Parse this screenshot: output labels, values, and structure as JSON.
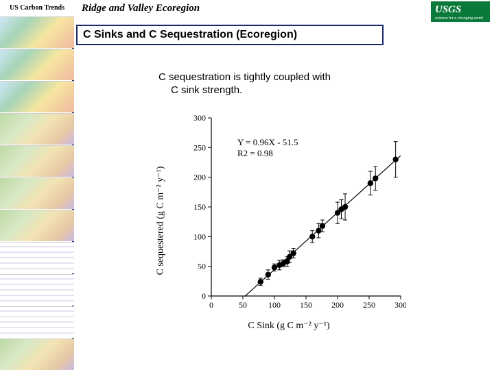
{
  "sidebar": {
    "header": "US Carbon Trends",
    "thumbs": [
      {
        "kind": "maps"
      },
      {
        "kind": "maps"
      },
      {
        "kind": "maps"
      },
      {
        "kind": "default"
      },
      {
        "kind": "default"
      },
      {
        "kind": "default"
      },
      {
        "kind": "default"
      },
      {
        "kind": "plots"
      },
      {
        "kind": "plots"
      },
      {
        "kind": "plots"
      },
      {
        "kind": "default"
      }
    ]
  },
  "main": {
    "region_title": "Ridge and Valley Ecoregion",
    "section_title": "C Sinks and C Sequestration (Ecoregion)",
    "body_line1": "C sequestration is tightly coupled with",
    "body_line2": "C sink strength."
  },
  "logo": {
    "bg": "#0a7a3a",
    "text_top": "USGS",
    "text_bottom": "science for a changing world"
  },
  "chart": {
    "type": "scatter",
    "xlabel": "C Sink (g C m⁻² y⁻¹)",
    "ylabel": "C sequestered (g C m⁻² y⁻¹)",
    "label_fontsize": 14,
    "tick_fontsize": 12,
    "background_color": "#ffffff",
    "axis_color": "#000000",
    "marker_color": "#000000",
    "marker_size": 4.2,
    "errorbar_color": "#000000",
    "line_color": "#000000",
    "line_width": 1.2,
    "xlim": [
      0,
      300
    ],
    "ylim": [
      0,
      300
    ],
    "xticks": [
      0,
      50,
      100,
      150,
      200,
      250,
      300
    ],
    "yticks": [
      0,
      50,
      100,
      150,
      200,
      250,
      300
    ],
    "equation_lines": [
      "Y = 0.96X - 51.5",
      "R2 = 0.98"
    ],
    "fit_line": {
      "slope": 0.96,
      "intercept": -51.5,
      "x_from": 53,
      "x_to": 300
    },
    "points": [
      {
        "x": 78,
        "y": 24,
        "ey": 6
      },
      {
        "x": 90,
        "y": 36,
        "ey": 8
      },
      {
        "x": 100,
        "y": 48,
        "ey": 6
      },
      {
        "x": 108,
        "y": 52,
        "ey": 8
      },
      {
        "x": 114,
        "y": 55,
        "ey": 6
      },
      {
        "x": 120,
        "y": 58,
        "ey": 8
      },
      {
        "x": 124,
        "y": 66,
        "ey": 10
      },
      {
        "x": 130,
        "y": 72,
        "ey": 8
      },
      {
        "x": 160,
        "y": 100,
        "ey": 10
      },
      {
        "x": 170,
        "y": 110,
        "ey": 12
      },
      {
        "x": 176,
        "y": 118,
        "ey": 10
      },
      {
        "x": 200,
        "y": 140,
        "ey": 18
      },
      {
        "x": 206,
        "y": 146,
        "ey": 16
      },
      {
        "x": 212,
        "y": 150,
        "ey": 22
      },
      {
        "x": 252,
        "y": 190,
        "ey": 20
      },
      {
        "x": 260,
        "y": 198,
        "ey": 20
      },
      {
        "x": 292,
        "y": 230,
        "ey": 30
      }
    ]
  }
}
